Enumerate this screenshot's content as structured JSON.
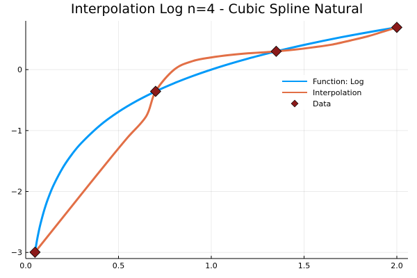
{
  "chart_data": {
    "type": "line",
    "title": "Interpolation Log n=4 - Cubic Spline Natural",
    "xlabel": "",
    "ylabel": "",
    "xlim": [
      0.0,
      2.06
    ],
    "ylim": [
      -3.1,
      0.8
    ],
    "x_ticks": [
      0.0,
      0.5,
      1.0,
      1.5,
      2.0
    ],
    "x_tick_labels": [
      "0.0",
      "0.5",
      "1.0",
      "1.5",
      "2.0"
    ],
    "y_ticks": [
      -3,
      -2,
      -1,
      0
    ],
    "y_tick_labels": [
      "−3",
      "−2",
      "−1",
      "0"
    ],
    "grid": true,
    "legend_position": "right",
    "series": [
      {
        "name": "Function: Log",
        "kind": "line",
        "color": "#009af9",
        "x": [
          0.05,
          0.06,
          0.07,
          0.08,
          0.1,
          0.12,
          0.15,
          0.2,
          0.25,
          0.3,
          0.4,
          0.5,
          0.6,
          0.7,
          0.8,
          0.9,
          1.0,
          1.1,
          1.2,
          1.3,
          1.35,
          1.4,
          1.5,
          1.6,
          1.7,
          1.8,
          1.9,
          2.0
        ],
        "y": [
          -2.996,
          -2.813,
          -2.659,
          -2.526,
          -2.303,
          -2.12,
          -1.897,
          -1.609,
          -1.386,
          -1.204,
          -0.916,
          -0.693,
          -0.511,
          -0.357,
          -0.223,
          -0.105,
          0.0,
          0.095,
          0.182,
          0.262,
          0.3,
          0.336,
          0.405,
          0.47,
          0.531,
          0.588,
          0.642,
          0.693
        ]
      },
      {
        "name": "Interpolation",
        "kind": "line",
        "color": "#e26f46",
        "x": [
          0.05,
          0.15,
          0.25,
          0.35,
          0.45,
          0.55,
          0.65,
          0.7,
          0.8,
          0.9,
          1.0,
          1.1,
          1.2,
          1.3,
          1.35,
          1.45,
          1.55,
          1.65,
          1.75,
          1.85,
          1.95,
          2.0
        ],
        "y": [
          -2.996,
          -2.616,
          -2.236,
          -1.855,
          -1.478,
          -1.111,
          -0.762,
          -0.357,
          0.0,
          0.14,
          0.2,
          0.24,
          0.268,
          0.287,
          0.3,
          0.328,
          0.366,
          0.41,
          0.478,
          0.552,
          0.646,
          0.693
        ]
      },
      {
        "name": "Data",
        "kind": "scatter",
        "color": "#8b1a1a",
        "x": [
          0.05,
          0.7,
          1.35,
          2.0
        ],
        "y": [
          -2.996,
          -0.357,
          0.3,
          0.693
        ]
      }
    ]
  }
}
